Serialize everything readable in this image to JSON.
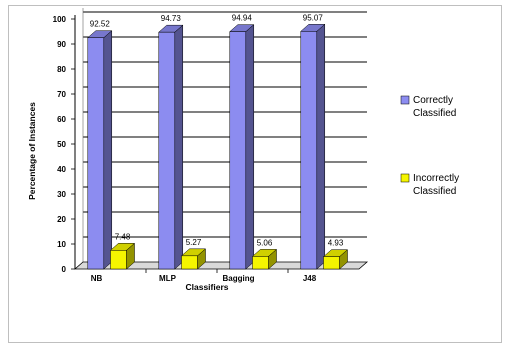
{
  "chart_data": {
    "type": "bar",
    "categories": [
      "NB",
      "MLP",
      "Bagging",
      "J48"
    ],
    "series": [
      {
        "name": "Correctly Classified",
        "legend_lines": [
          "Correctly",
          "Classified"
        ],
        "color": "#8c8cf0",
        "values": [
          92.52,
          94.73,
          94.94,
          95.07
        ],
        "labels": [
          "92.52",
          "94.73",
          "94.94",
          "95.07"
        ]
      },
      {
        "name": "Incorrectly Classified",
        "legend_lines": [
          "Incorrectly",
          "Classified"
        ],
        "color": "#f5f500",
        "values": [
          7.48,
          5.27,
          5.06,
          4.93
        ],
        "labels": [
          "7.48",
          "5.27",
          "5.06",
          "4.93"
        ]
      }
    ],
    "xlabel": "Classifiers",
    "ylabel": "Percentage of Instances",
    "ylim": [
      0,
      100
    ],
    "yticks": [
      "0",
      "10",
      "20",
      "30",
      "40",
      "50",
      "60",
      "70",
      "80",
      "90",
      "100"
    ],
    "grid": true,
    "legend_position": "right"
  }
}
